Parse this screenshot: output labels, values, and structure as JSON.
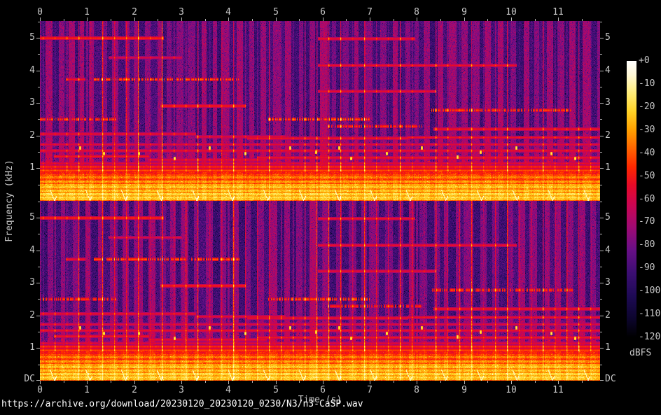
{
  "page": {
    "background": "#000000",
    "url_text": "https://archive.org/download/20230120_20230120_0230/N3/n3-CaSP.wav"
  },
  "axes": {
    "freq_label": "Frequency (kHz)",
    "time_label": "Time (s)",
    "dc_label": "DC",
    "time_major_ticks": [
      0,
      1,
      2,
      3,
      4,
      5,
      6,
      7,
      8,
      9,
      10,
      11
    ],
    "time_minor_step": 0.5,
    "freq_major_ticks": [
      5,
      4,
      3,
      2,
      1
    ],
    "freq_minor_ticks": [
      5.5,
      4.5,
      3.5,
      2.5,
      1.5,
      0.5
    ],
    "tick_color": "#b4b4b4",
    "text_color": "#c8c8c8"
  },
  "colorbar": {
    "label": "dBFS",
    "tick_labels": [
      "+0",
      "-10",
      "-20",
      "-30",
      "-40",
      "-50",
      "-60",
      "-70",
      "-80",
      "-90",
      "-100",
      "-110",
      "-120"
    ],
    "stops": [
      {
        "db": 0,
        "color": "#ffffff"
      },
      {
        "db": -6,
        "color": "#fff8d8"
      },
      {
        "db": -14,
        "color": "#ffec78"
      },
      {
        "db": -22,
        "color": "#ffd226"
      },
      {
        "db": -30,
        "color": "#ffa000"
      },
      {
        "db": -38,
        "color": "#ff6400"
      },
      {
        "db": -46,
        "color": "#ff2800"
      },
      {
        "db": -54,
        "color": "#e60a28"
      },
      {
        "db": -62,
        "color": "#cd0550"
      },
      {
        "db": -72,
        "color": "#a00a73"
      },
      {
        "db": -82,
        "color": "#690f87"
      },
      {
        "db": -92,
        "color": "#3c0e73"
      },
      {
        "db": -102,
        "color": "#1e0a55"
      },
      {
        "db": -112,
        "color": "#0c052d"
      },
      {
        "db": -120,
        "color": "#000000"
      }
    ]
  },
  "chart_data": {
    "type": "heatmap",
    "subtype": "spectrogram",
    "channels": 2,
    "duration_s": 11.887,
    "nyquist_khz": 5.5125,
    "db_range": [
      -120,
      0
    ],
    "panels": [
      {
        "name": "channel-1",
        "seed": 7
      },
      {
        "name": "channel-2",
        "seed": 19
      }
    ],
    "tones": [
      [
        0.0,
        2.62,
        5.0,
        -46,
        0
      ],
      [
        5.9,
        7.95,
        4.97,
        -52,
        0
      ],
      [
        5.9,
        10.1,
        4.16,
        -53,
        0
      ],
      [
        1.45,
        3.0,
        4.4,
        -58,
        0
      ],
      [
        0.55,
        0.95,
        3.73,
        -52,
        0
      ],
      [
        1.15,
        4.25,
        3.73,
        -42,
        1
      ],
      [
        5.9,
        8.4,
        3.37,
        -54,
        0
      ],
      [
        2.55,
        4.35,
        2.92,
        -48,
        0
      ],
      [
        8.3,
        11.3,
        2.78,
        -44,
        1
      ],
      [
        0.0,
        1.6,
        2.52,
        -44,
        1
      ],
      [
        4.85,
        7.0,
        2.52,
        -41,
        1
      ],
      [
        6.1,
        8.1,
        2.3,
        -48,
        1
      ],
      [
        8.35,
        11.887,
        2.2,
        -50,
        0
      ],
      [
        0.0,
        3.3,
        2.06,
        -53,
        0
      ],
      [
        3.3,
        5.2,
        1.98,
        -55,
        0
      ],
      [
        4.4,
        7.8,
        1.92,
        -51,
        0
      ],
      [
        7.8,
        11.887,
        1.96,
        -53,
        0
      ],
      [
        0.0,
        11.887,
        1.74,
        -57,
        0
      ],
      [
        0.0,
        11.887,
        1.55,
        -53,
        0
      ],
      [
        0.3,
        2.3,
        1.38,
        -51,
        0
      ],
      [
        2.3,
        4.8,
        1.27,
        -53,
        0
      ],
      [
        4.6,
        11.887,
        1.33,
        -51,
        0
      ],
      [
        0.0,
        11.887,
        1.15,
        -55,
        0
      ],
      [
        0.0,
        11.887,
        1.05,
        -45,
        0
      ],
      [
        0.0,
        11.887,
        0.95,
        -41,
        0
      ]
    ],
    "clicks": {
      "start_s": 0.065,
      "interval_s": 0.2525,
      "strong": [
        0.8,
        1.31,
        2.07,
        2.57,
        3.33,
        4.09,
        4.84,
        5.55,
        5.7,
        5.85,
        6.0,
        6.15,
        6.3,
        6.86,
        7.62,
        8.37,
        9.13,
        9.88,
        10.64,
        11.39
      ]
    },
    "dots": [
      [
        0.85,
        1.62
      ],
      [
        1.35,
        1.45
      ],
      [
        2.1,
        1.45
      ],
      [
        2.85,
        1.3
      ],
      [
        3.6,
        1.62
      ],
      [
        4.35,
        1.45
      ],
      [
        5.3,
        1.62
      ],
      [
        5.85,
        1.5
      ],
      [
        6.35,
        1.62
      ],
      [
        6.6,
        1.3
      ],
      [
        7.35,
        1.45
      ],
      [
        8.1,
        1.62
      ],
      [
        8.85,
        1.35
      ],
      [
        9.35,
        1.5
      ],
      [
        10.1,
        1.62
      ],
      [
        10.85,
        1.45
      ],
      [
        11.35,
        1.3
      ]
    ],
    "low_band": {
      "top_khz": 0.92,
      "striations": [
        [
          0.86,
          -50
        ],
        [
          0.8,
          -44
        ],
        [
          0.74,
          -36
        ],
        [
          0.67,
          -46
        ],
        [
          0.61,
          -32
        ],
        [
          0.55,
          -42
        ],
        [
          0.5,
          -30
        ],
        [
          0.44,
          -26
        ],
        [
          0.38,
          -36
        ],
        [
          0.32,
          -26
        ],
        [
          0.27,
          -34
        ],
        [
          0.22,
          -22
        ],
        [
          0.17,
          -30
        ],
        [
          0.12,
          -22
        ],
        [
          0.07,
          -26
        ],
        [
          0.03,
          -40
        ]
      ],
      "chirps": {
        "start_s": 0.3,
        "interval_s": 0.755
      }
    }
  }
}
